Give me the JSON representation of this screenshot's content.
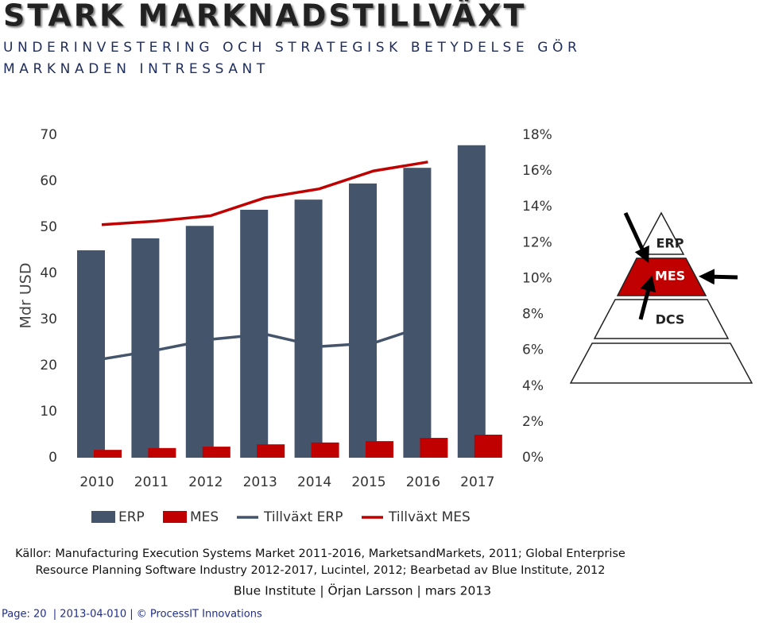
{
  "header": {
    "title": "STARK MARKNADSTILLVÄXT",
    "subtitle": [
      "UNDERINVESTERING OCH STRATEGISK BETYDELSE GÖR",
      "MARKNADEN INTRESSANT"
    ]
  },
  "chart_data": {
    "type": "bar",
    "y_label": "Mdr USD",
    "categories": [
      "2010",
      "2011",
      "2012",
      "2013",
      "2014",
      "2015",
      "2016",
      "2017"
    ],
    "series": [
      {
        "name": "ERP",
        "color": "#44546a",
        "values": [
          45.0,
          47.6,
          50.3,
          53.8,
          56.0,
          59.5,
          62.9,
          67.8
        ]
      },
      {
        "name": "MES",
        "color": "#c00000",
        "values": [
          1.7,
          2.1,
          2.4,
          2.9,
          3.3,
          3.6,
          4.3,
          5.0
        ]
      },
      {
        "name": "Tillväxt ERP",
        "type": "line",
        "axis": "y2",
        "color": "#44546a",
        "values": [
          5.5,
          6.0,
          6.6,
          6.9,
          6.2,
          6.4,
          7.4,
          null
        ]
      },
      {
        "name": "Tillväxt MES",
        "type": "line",
        "axis": "y2",
        "color": "#c00000",
        "values": [
          13.0,
          13.2,
          13.5,
          14.5,
          15.0,
          16.0,
          16.5,
          null
        ]
      }
    ],
    "ylim": [
      0,
      70
    ],
    "yticks": [
      0,
      10,
      20,
      30,
      40,
      50,
      60,
      70
    ],
    "y2lim": [
      0,
      18
    ],
    "y2ticks": [
      {
        "value": 0,
        "label": "0%"
      },
      {
        "value": 2,
        "label": "2%"
      },
      {
        "value": 4,
        "label": "4%"
      },
      {
        "value": 6,
        "label": "6%"
      },
      {
        "value": 8,
        "label": "8%"
      },
      {
        "value": 10,
        "label": "10%"
      },
      {
        "value": 12,
        "label": "12%"
      },
      {
        "value": 14,
        "label": "14%"
      },
      {
        "value": 16,
        "label": "16%"
      },
      {
        "value": 18,
        "label": "18%"
      }
    ],
    "legend": "bottom"
  },
  "pyramid": {
    "levels": [
      "ERP",
      "MES",
      "DCS"
    ]
  },
  "source": [
    "Källor: Manufacturing Execution Systems Market 2011-2016, MarketsandMarkets, 2011; Global Enterprise",
    "Resource Planning Software Industry 2012-2017, Lucintel, 2012; Bearbetad av Blue Institute, 2012"
  ],
  "credit": "Blue Institute | Örjan Larsson | mars 2013",
  "footer": "Page: 20  | 2013-04-010 | © ProcessIT Innovations"
}
